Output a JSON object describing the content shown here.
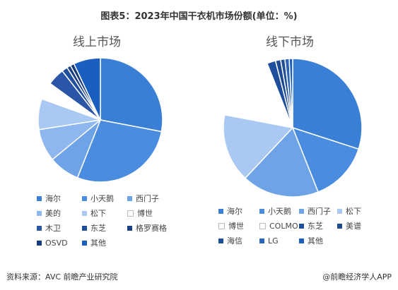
{
  "title": "图表5：2023年中国干衣机市场份额(单位：%)",
  "source": "资料来源：AVC 前瞻产业研究院",
  "brand": "@前瞻经济学人APP",
  "colors": {
    "海尔": "#3a7fd6",
    "小天鹅": "#4a8ce0",
    "西门子": "#6fa3e8",
    "美的": "#8db7ee",
    "松下": "#a9c8f2",
    "博世": "#ffffff",
    "木卫": "#2b56a8",
    "东芝": "#1f4e9c",
    "格罗赛格": "#1b3f86",
    "OSVD": "#163a7a",
    "其他": "#1a5fc0",
    "COLMO": "#ffffff",
    "美谱": "#1d4a93",
    "海信": "#204f9a",
    "LG": "#2a64b8"
  },
  "chart_data": [
    {
      "type": "pie",
      "title": "线上市场",
      "legend": [
        "海尔",
        "小天鹅",
        "西门子",
        "美的",
        "松下",
        "博世",
        "木卫",
        "东芝",
        "格罗赛格",
        "OSVD",
        "其他"
      ],
      "slices": [
        {
          "label": "海尔",
          "value": 28.0
        },
        {
          "label": "小天鹅",
          "value": 28.0
        },
        {
          "label": "西门子",
          "value": 8.0
        },
        {
          "label": "美的",
          "value": 8.5
        },
        {
          "label": "松下",
          "value": 8.0
        },
        {
          "label": "博世",
          "value": 4.5
        },
        {
          "label": "木卫",
          "value": 4.5
        },
        {
          "label": "东芝",
          "value": 1.5
        },
        {
          "label": "格罗赛格",
          "value": 1.0
        },
        {
          "label": "OSVD",
          "value": 1.0
        },
        {
          "label": "其他",
          "value": 7.0
        }
      ]
    },
    {
      "type": "pie",
      "title": "线下市场",
      "legend": [
        "海尔",
        "小天鹅",
        "西门子",
        "松下",
        "博世",
        "COLMO",
        "东芝",
        "美谱",
        "海信",
        "LG",
        "其他"
      ],
      "slices": [
        {
          "label": "海尔",
          "value": 30.0
        },
        {
          "label": "小天鹅",
          "value": 14.0
        },
        {
          "label": "西门子",
          "value": 18.0
        },
        {
          "label": "松下",
          "value": 16.0
        },
        {
          "label": "博世",
          "value": 12.0
        },
        {
          "label": "COLMO",
          "value": 4.0
        },
        {
          "label": "东芝",
          "value": 2.0
        },
        {
          "label": "美谱",
          "value": 1.2
        },
        {
          "label": "海信",
          "value": 1.0
        },
        {
          "label": "LG",
          "value": 1.0
        },
        {
          "label": "其他",
          "value": 0.8
        }
      ]
    }
  ]
}
